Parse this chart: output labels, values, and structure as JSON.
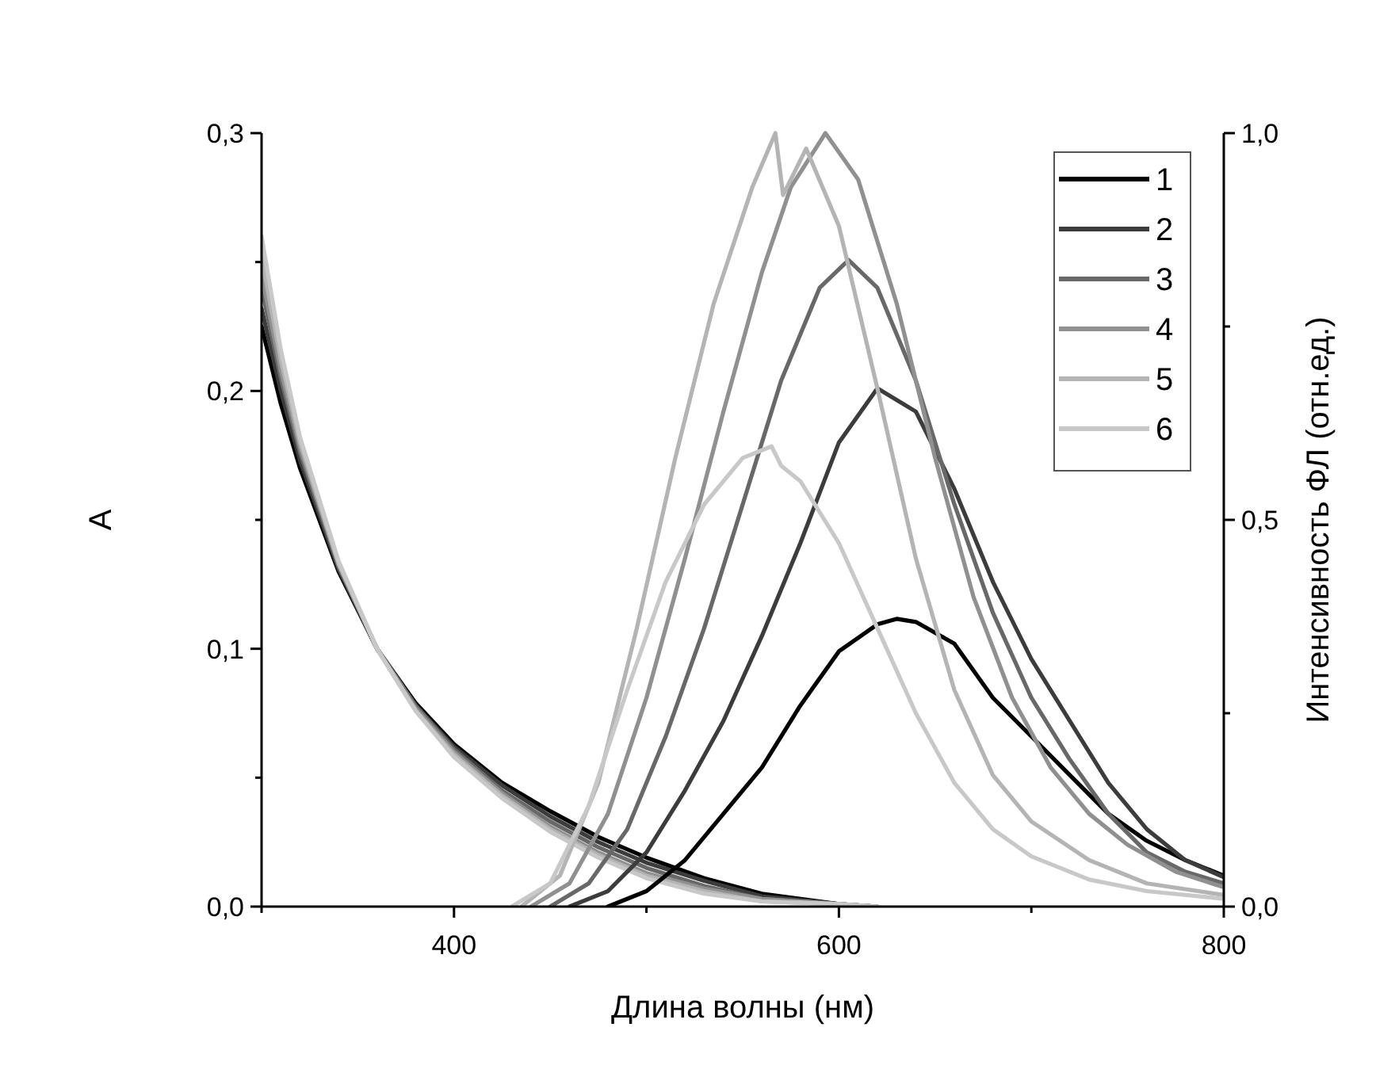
{
  "chart_data": {
    "type": "line",
    "xlabel": "Длина волны (нм)",
    "ylabel": "A",
    "y2label": "Интенсивность ФЛ (отн.ед.)",
    "xlim": [
      300,
      800
    ],
    "xticks": [
      {
        "value": 300,
        "label": null
      },
      400,
      {
        "value": 500,
        "label": null
      },
      600,
      {
        "value": 700,
        "label": null
      },
      800
    ],
    "ylim": [
      0,
      0.3
    ],
    "yticks": [
      {
        "value": 0,
        "label": "0,0"
      },
      {
        "value": 0.05,
        "label": null
      },
      {
        "value": 0.1,
        "label": "0,1"
      },
      {
        "value": 0.15,
        "label": null
      },
      {
        "value": 0.2,
        "label": "0,2"
      },
      {
        "value": 0.25,
        "label": null
      },
      {
        "value": 0.3,
        "label": "0,3"
      }
    ],
    "y2lim": [
      0,
      1
    ],
    "y2ticks": [
      {
        "value": 0,
        "label": "0,0"
      },
      {
        "value": 0.25,
        "label": null
      },
      {
        "value": 0.5,
        "label": "0,5"
      },
      {
        "value": 0.75,
        "label": null
      },
      {
        "value": 1,
        "label": "1,0"
      }
    ],
    "grid": false,
    "legend": "top right",
    "line_style": "solid",
    "marker": "none",
    "series": [
      {
        "color": "#000000",
        "x": [
          300,
          310,
          320,
          340,
          360,
          380,
          400,
          425,
          450,
          475,
          500,
          530,
          560,
          600,
          620
        ],
        "values": [
          0.225,
          0.195,
          0.17,
          0.13,
          0.1,
          0.079,
          0.063,
          0.048,
          0.037,
          0.027,
          0.019,
          0.011,
          0.005,
          0.001,
          0
        ]
      },
      {
        "color": "#3c3c3c",
        "x": [
          300,
          310,
          320,
          340,
          360,
          380,
          400,
          425,
          450,
          475,
          500,
          530,
          560,
          600,
          620
        ],
        "values": [
          0.232,
          0.2,
          0.173,
          0.131,
          0.1,
          0.078,
          0.062,
          0.047,
          0.035,
          0.025,
          0.017,
          0.01,
          0.004,
          0.001,
          0
        ]
      },
      {
        "color": "#686868",
        "x": [
          300,
          310,
          320,
          340,
          360,
          380,
          400,
          425,
          450,
          475,
          500,
          530,
          560,
          600,
          620
        ],
        "values": [
          0.24,
          0.205,
          0.176,
          0.132,
          0.1,
          0.078,
          0.061,
          0.045,
          0.033,
          0.023,
          0.015,
          0.008,
          0.003,
          0.001,
          0
        ]
      },
      {
        "color": "#909090",
        "x": [
          300,
          310,
          320,
          340,
          360,
          380,
          400,
          425,
          450,
          475,
          500,
          530,
          560,
          600,
          620
        ],
        "values": [
          0.245,
          0.208,
          0.178,
          0.133,
          0.1,
          0.077,
          0.06,
          0.044,
          0.031,
          0.021,
          0.013,
          0.007,
          0.003,
          0.001,
          0
        ]
      },
      {
        "color": "#b4b4b4",
        "x": [
          300,
          310,
          320,
          340,
          360,
          380,
          400,
          425,
          450,
          475,
          500,
          530,
          560,
          600,
          620
        ],
        "values": [
          0.252,
          0.212,
          0.18,
          0.133,
          0.1,
          0.076,
          0.059,
          0.043,
          0.03,
          0.02,
          0.012,
          0.006,
          0.002,
          0.001,
          0
        ]
      },
      {
        "color": "#c8c8c8",
        "x": [
          300,
          310,
          320,
          340,
          360,
          380,
          400,
          425,
          450,
          475,
          500,
          530,
          560,
          600,
          620
        ],
        "values": [
          0.26,
          0.216,
          0.182,
          0.134,
          0.1,
          0.076,
          0.058,
          0.042,
          0.029,
          0.019,
          0.011,
          0.005,
          0.002,
          0.001,
          0
        ]
      },
      {
        "name": "1",
        "color": "#000000",
        "axis": "y2",
        "x": [
          480,
          500,
          520,
          540,
          560,
          580,
          600,
          620,
          630,
          640,
          660,
          680,
          700,
          720,
          740,
          760,
          780,
          800
        ],
        "values": [
          0,
          0.02,
          0.06,
          0.12,
          0.18,
          0.26,
          0.33,
          0.365,
          0.372,
          0.368,
          0.34,
          0.27,
          0.22,
          0.17,
          0.12,
          0.085,
          0.06,
          0.04
        ]
      },
      {
        "name": "2",
        "color": "#3c3c3c",
        "axis": "y2",
        "x": [
          460,
          480,
          500,
          520,
          540,
          560,
          580,
          600,
          620,
          640,
          660,
          680,
          700,
          720,
          740,
          760,
          780,
          800
        ],
        "values": [
          0,
          0.02,
          0.07,
          0.15,
          0.24,
          0.35,
          0.47,
          0.6,
          0.67,
          0.64,
          0.54,
          0.42,
          0.32,
          0.24,
          0.16,
          0.1,
          0.06,
          0.038
        ]
      },
      {
        "name": "3",
        "color": "#686868",
        "axis": "y2",
        "x": [
          450,
          470,
          490,
          510,
          530,
          550,
          570,
          590,
          605,
          620,
          640,
          660,
          680,
          700,
          720,
          740,
          760,
          780,
          800
        ],
        "values": [
          0,
          0.03,
          0.1,
          0.22,
          0.36,
          0.52,
          0.68,
          0.8,
          0.836,
          0.8,
          0.68,
          0.52,
          0.38,
          0.27,
          0.19,
          0.12,
          0.07,
          0.045,
          0.03
        ]
      },
      {
        "name": "4",
        "color": "#909090",
        "axis": "y2",
        "x": [
          440,
          460,
          480,
          500,
          520,
          540,
          560,
          575,
          593,
          610,
          630,
          650,
          670,
          690,
          710,
          730,
          750,
          775,
          800
        ],
        "values": [
          0,
          0.03,
          0.12,
          0.27,
          0.45,
          0.64,
          0.82,
          0.93,
          1,
          0.94,
          0.78,
          0.58,
          0.4,
          0.27,
          0.18,
          0.12,
          0.08,
          0.045,
          0.025
        ]
      },
      {
        "name": "5",
        "color": "#b4b4b4",
        "axis": "y2",
        "x": [
          435,
          455,
          475,
          495,
          515,
          535,
          555,
          567,
          571,
          583,
          600,
          620,
          640,
          660,
          680,
          700,
          730,
          760,
          800
        ],
        "values": [
          0,
          0.04,
          0.16,
          0.36,
          0.58,
          0.78,
          0.93,
          1,
          0.92,
          0.98,
          0.88,
          0.67,
          0.45,
          0.28,
          0.17,
          0.11,
          0.06,
          0.03,
          0.015
        ]
      },
      {
        "name": "6",
        "color": "#c8c8c8",
        "axis": "y2",
        "x": [
          430,
          450,
          470,
          490,
          510,
          530,
          550,
          565,
          570,
          580,
          600,
          620,
          640,
          660,
          680,
          700,
          730,
          760,
          800
        ],
        "values": [
          0,
          0.03,
          0.13,
          0.28,
          0.42,
          0.52,
          0.58,
          0.595,
          0.57,
          0.55,
          0.47,
          0.36,
          0.25,
          0.16,
          0.1,
          0.065,
          0.035,
          0.02,
          0.01
        ]
      }
    ]
  }
}
